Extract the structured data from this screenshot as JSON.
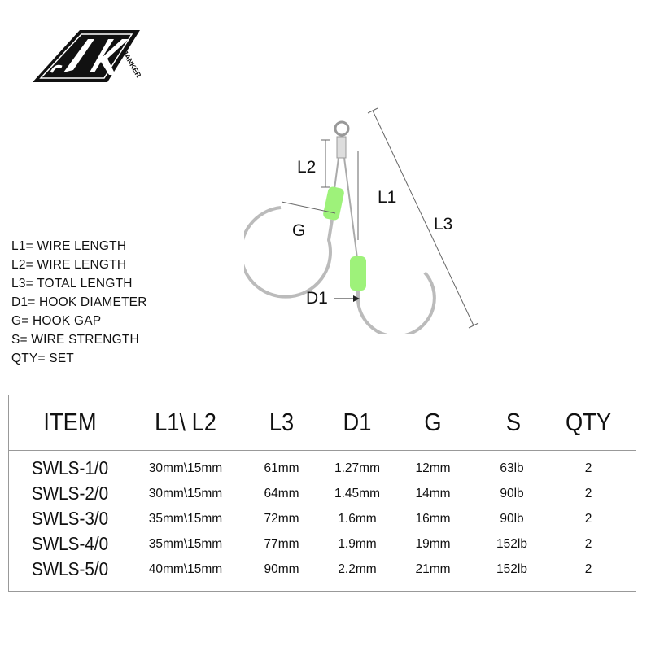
{
  "brand": {
    "logo_text": "JK",
    "logo_subtext": "JANKER",
    "watermark": "JK JANKER"
  },
  "diagram_labels": {
    "l1": "L1",
    "l2": "L2",
    "l3": "L3",
    "g": "G",
    "d1": "D1"
  },
  "legend": [
    "L1= WIRE LENGTH",
    "L2= WIRE LENGTH",
    "L3= TOTAL LENGTH",
    "D1= HOOK DIAMETER",
    "G= HOOK GAP",
    "S= WIRE STRENGTH",
    "QTY= SET"
  ],
  "colors": {
    "sleeve": "#9ef27a",
    "hook": "#c8c8c8",
    "border": "#999999"
  },
  "table": {
    "headers": [
      "ITEM",
      "L1\\ L2",
      "L3",
      "D1",
      "G",
      "S",
      "QTY"
    ],
    "rows": [
      [
        "SWLS-1/0",
        "30mm\\15mm",
        "61mm",
        "1.27mm",
        "12mm",
        "63lb",
        "2"
      ],
      [
        "SWLS-2/0",
        "30mm\\15mm",
        "64mm",
        "1.45mm",
        "14mm",
        "90lb",
        "2"
      ],
      [
        "SWLS-3/0",
        "35mm\\15mm",
        "72mm",
        "1.6mm",
        "16mm",
        "90lb",
        "2"
      ],
      [
        "SWLS-4/0",
        "35mm\\15mm",
        "77mm",
        "1.9mm",
        "19mm",
        "152lb",
        "2"
      ],
      [
        "SWLS-5/0",
        "40mm\\15mm",
        "90mm",
        "2.2mm",
        "21mm",
        "152lb",
        "2"
      ]
    ]
  }
}
